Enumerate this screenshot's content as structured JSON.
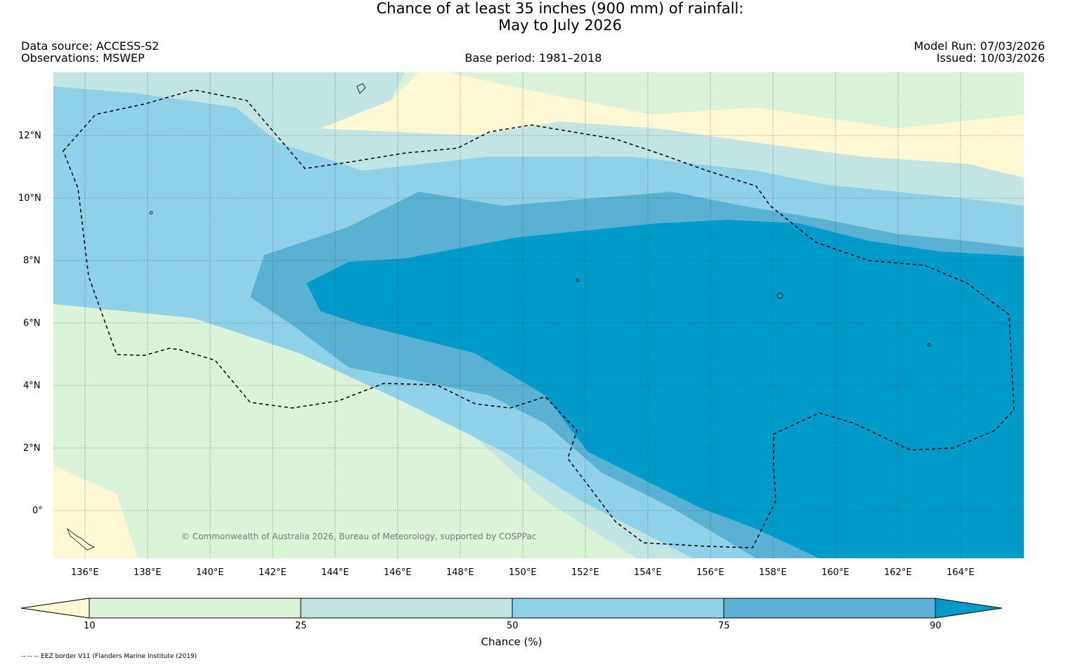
{
  "title": {
    "line1": "Chance of at least 35 inches (900  mm) of rainfall:",
    "line2": "May to July 2026"
  },
  "meta": {
    "data_source": "Data source: ACCESS-S2",
    "observations": "Observations: MSWEP",
    "base_period": "Base period: 1981–2018",
    "model_run": "Model Run: 07/03/2026",
    "issued": "Issued: 10/03/2026"
  },
  "map": {
    "lon_labels": [
      "136°E",
      "138°E",
      "140°E",
      "142°E",
      "144°E",
      "146°E",
      "148°E",
      "150°E",
      "152°E",
      "154°E",
      "156°E",
      "158°E",
      "160°E",
      "162°E",
      "164°E"
    ],
    "lat_labels": [
      "12°N",
      "10°N",
      "8°N",
      "6°N",
      "4°N",
      "2°N",
      "0°"
    ],
    "credit": "© Commonwealth of Australia 2026, Bureau of Meteorology, supported by COSPPac"
  },
  "legend": {
    "label": "Chance (%)",
    "ticks": [
      "10",
      "25",
      "50",
      "75",
      "90"
    ],
    "colors": [
      "#fff8d3",
      "#dcf2d9",
      "#c2e4e3",
      "#8fd1e8",
      "#5ab1d3",
      "#009bc8"
    ]
  },
  "footnote": "-- -- -- EEZ border V11 (Flanders Marine Institute (2019)"
}
